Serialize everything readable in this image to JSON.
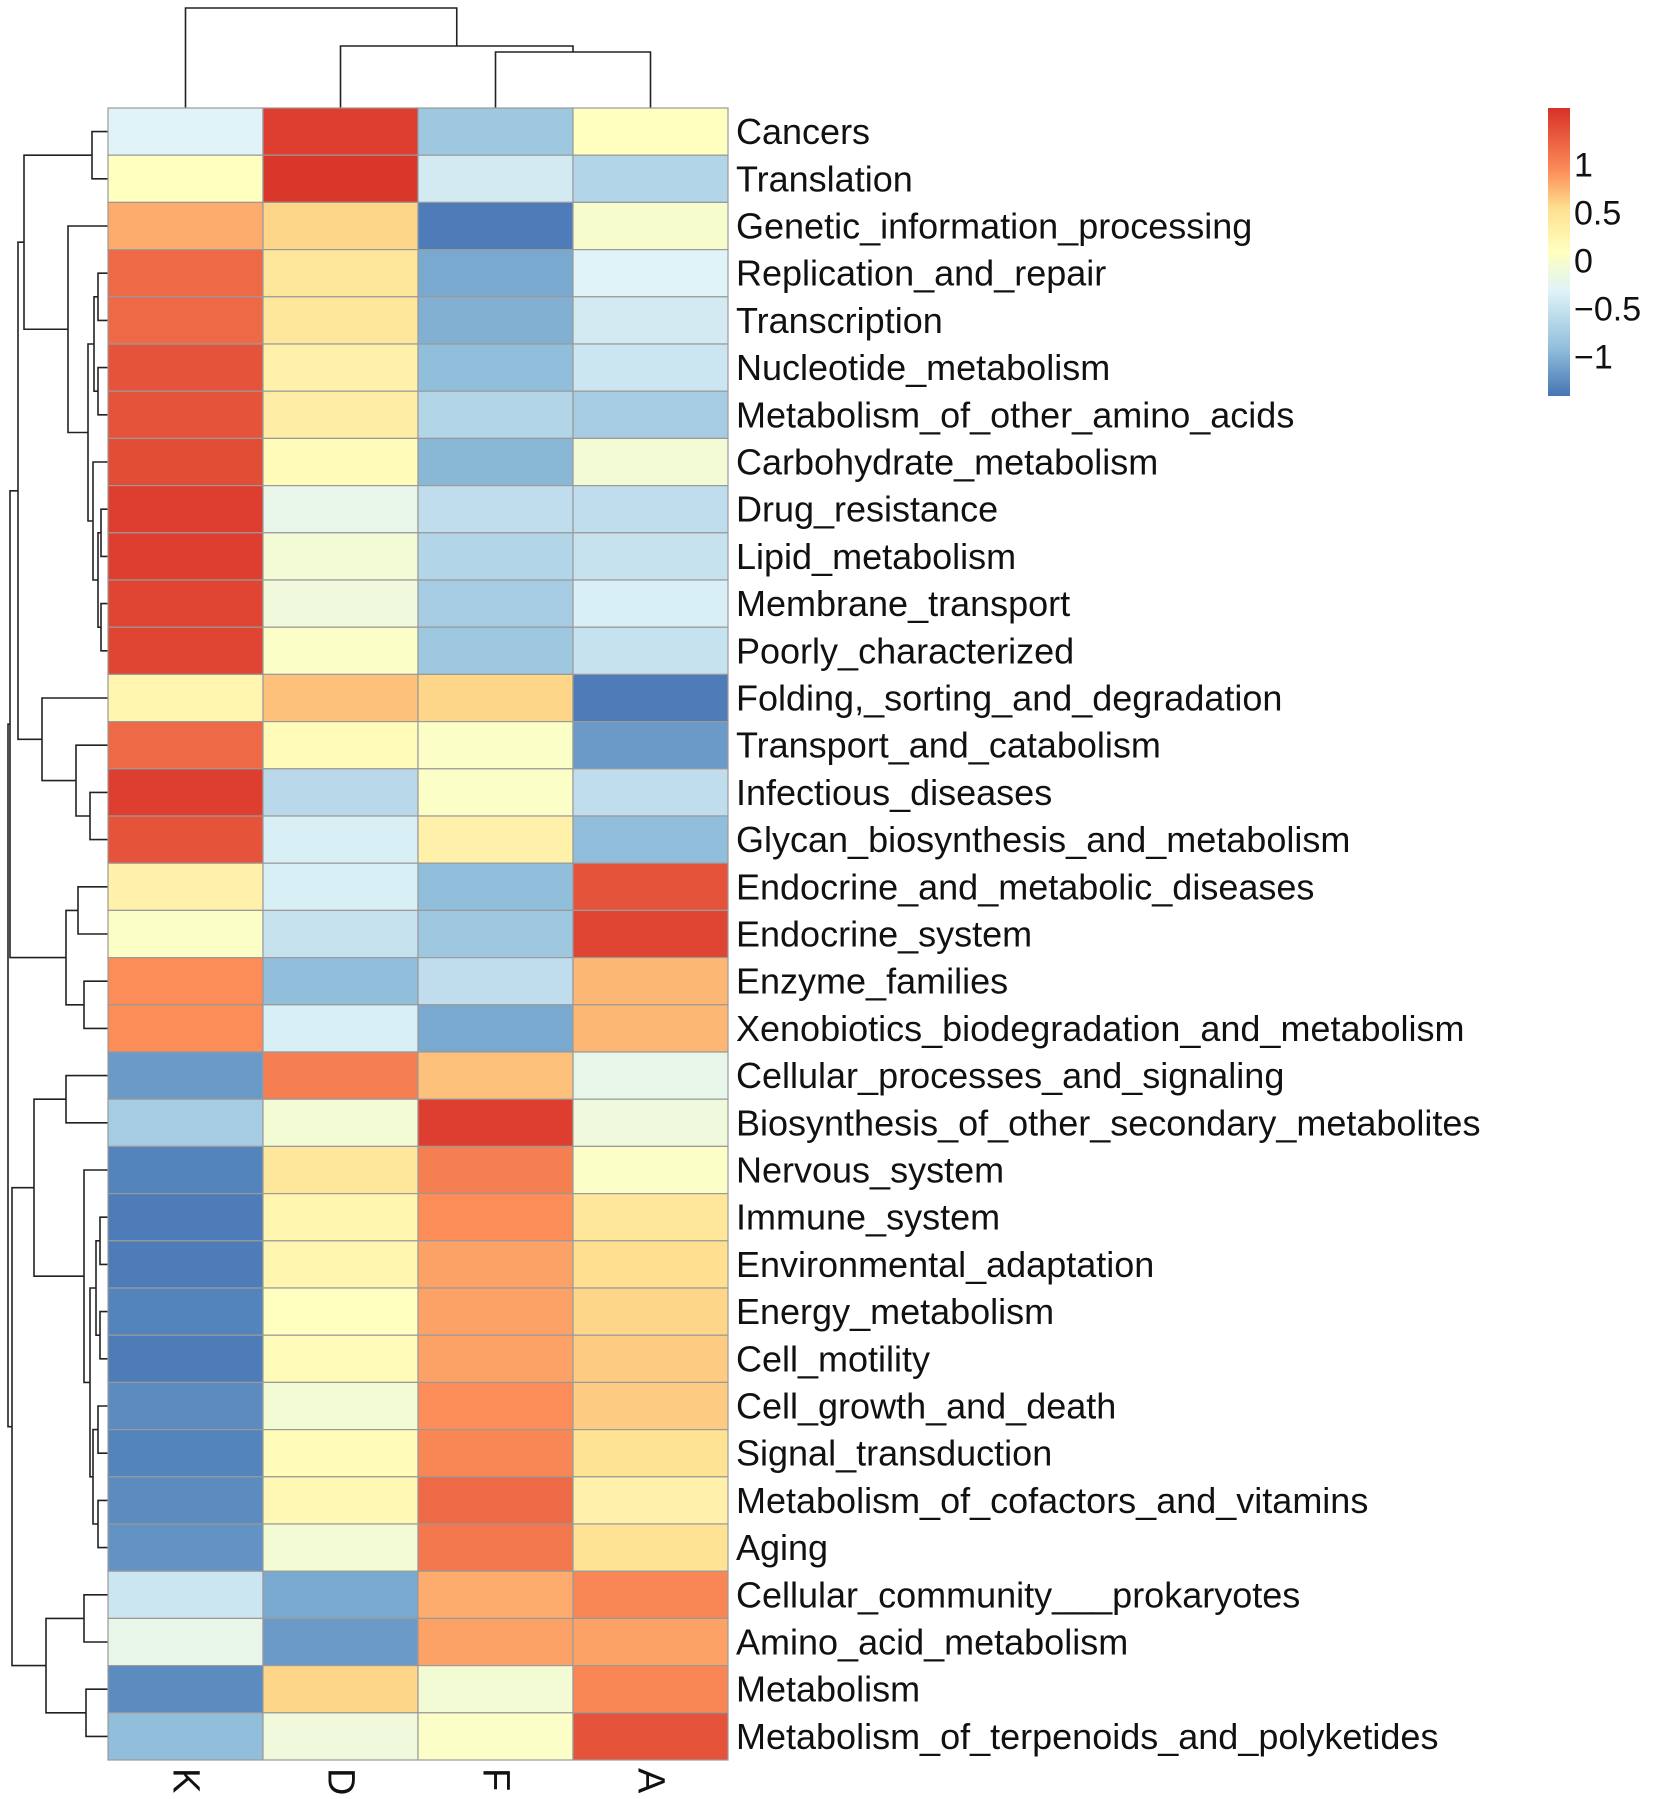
{
  "chart_data": {
    "type": "heatmap",
    "columns": [
      "K",
      "D",
      "F",
      "A"
    ],
    "rows": [
      {
        "label": "Cancers",
        "values": [
          -0.3,
          1.5,
          -0.8,
          0.1
        ]
      },
      {
        "label": "Translation",
        "values": [
          0.1,
          1.55,
          -0.4,
          -0.65
        ]
      },
      {
        "label": "Genetic_information_processing",
        "values": [
          0.8,
          0.6,
          -1.35,
          0.0
        ]
      },
      {
        "label": "Replication_and_repair",
        "values": [
          1.2,
          0.45,
          -1.05,
          -0.3
        ]
      },
      {
        "label": "Transcription",
        "values": [
          1.2,
          0.45,
          -1.0,
          -0.4
        ]
      },
      {
        "label": "Nucleotide_metabolism",
        "values": [
          1.35,
          0.3,
          -0.9,
          -0.45
        ]
      },
      {
        "label": "Metabolism_of_other_amino_acids",
        "values": [
          1.35,
          0.35,
          -0.65,
          -0.75
        ]
      },
      {
        "label": "Carbohydrate_metabolism",
        "values": [
          1.4,
          0.15,
          -0.95,
          -0.05
        ]
      },
      {
        "label": "Drug_resistance",
        "values": [
          1.5,
          -0.2,
          -0.55,
          -0.55
        ]
      },
      {
        "label": "Lipid_metabolism",
        "values": [
          1.5,
          -0.05,
          -0.65,
          -0.5
        ]
      },
      {
        "label": "Membrane_transport",
        "values": [
          1.45,
          -0.1,
          -0.75,
          -0.35
        ]
      },
      {
        "label": "Poorly_characterized",
        "values": [
          1.45,
          0.05,
          -0.8,
          -0.5
        ]
      },
      {
        "label": "Folding,_sorting_and_degradation",
        "values": [
          0.25,
          0.7,
          0.6,
          -1.35
        ]
      },
      {
        "label": "Transport_and_catabolism",
        "values": [
          1.2,
          0.15,
          0.05,
          -1.15
        ]
      },
      {
        "label": "Infectious_diseases",
        "values": [
          1.5,
          -0.6,
          0.05,
          -0.55
        ]
      },
      {
        "label": "Glycan_biosynthesis_and_metabolism",
        "values": [
          1.35,
          -0.35,
          0.3,
          -0.9
        ]
      },
      {
        "label": "Endocrine_and_metabolic_diseases",
        "values": [
          0.3,
          -0.35,
          -0.9,
          1.35
        ]
      },
      {
        "label": "Endocrine_system",
        "values": [
          0.05,
          -0.5,
          -0.8,
          1.45
        ]
      },
      {
        "label": "Enzyme_families",
        "values": [
          0.95,
          -0.9,
          -0.55,
          0.75
        ]
      },
      {
        "label": "Xenobiotics_biodegradation_and_metabolism",
        "values": [
          0.95,
          -0.35,
          -1.05,
          0.75
        ]
      },
      {
        "label": "Cellular_processes_and_signaling",
        "values": [
          -1.15,
          1.05,
          0.7,
          -0.2
        ]
      },
      {
        "label": "Biosynthesis_of_other_secondary_metabolites",
        "values": [
          -0.75,
          -0.05,
          1.5,
          -0.1
        ]
      },
      {
        "label": "Nervous_system",
        "values": [
          -1.3,
          0.45,
          1.05,
          0.05
        ]
      },
      {
        "label": "Immune_system",
        "values": [
          -1.35,
          0.25,
          0.95,
          0.45
        ]
      },
      {
        "label": "Environmental_adaptation",
        "values": [
          -1.35,
          0.25,
          0.85,
          0.55
        ]
      },
      {
        "label": "Energy_metabolism",
        "values": [
          -1.3,
          0.1,
          0.85,
          0.6
        ]
      },
      {
        "label": "Cell_motility",
        "values": [
          -1.35,
          0.15,
          0.85,
          0.65
        ]
      },
      {
        "label": "Cell_growth_and_death",
        "values": [
          -1.25,
          -0.05,
          0.95,
          0.65
        ]
      },
      {
        "label": "Signal_transduction",
        "values": [
          -1.3,
          0.15,
          1.0,
          0.5
        ]
      },
      {
        "label": "Metabolism_of_cofactors_and_vitamins",
        "values": [
          -1.25,
          0.2,
          1.2,
          0.3
        ]
      },
      {
        "label": "Aging",
        "values": [
          -1.2,
          -0.05,
          1.1,
          0.5
        ]
      },
      {
        "label": "Cellular_community___prokaryotes",
        "values": [
          -0.45,
          -1.05,
          0.8,
          1.0
        ]
      },
      {
        "label": "Amino_acid_metabolism",
        "values": [
          -0.2,
          -1.15,
          0.85,
          0.85
        ]
      },
      {
        "label": "Metabolism",
        "values": [
          -1.25,
          0.6,
          -0.05,
          1.0
        ]
      },
      {
        "label": "Metabolism_of_terpenoids_and_polyketides",
        "values": [
          -0.9,
          -0.1,
          0.05,
          1.35
        ]
      }
    ],
    "color_scale": {
      "range": [
        -1.4,
        1.6
      ],
      "ticks": [
        1,
        0.5,
        0,
        -0.5,
        -1
      ],
      "tick_labels": [
        "1",
        "0.5",
        "0",
        "−0.5",
        "−1"
      ],
      "stops": [
        {
          "value": -1.4,
          "color": "#4575b4"
        },
        {
          "value": -0.9,
          "color": "#91bfdb"
        },
        {
          "value": -0.3,
          "color": "#e0f3f8"
        },
        {
          "value": 0.1,
          "color": "#ffffbf"
        },
        {
          "value": 0.55,
          "color": "#fee090"
        },
        {
          "value": 0.95,
          "color": "#fc8d59"
        },
        {
          "value": 1.6,
          "color": "#d73027"
        }
      ]
    },
    "row_clustering": true,
    "column_clustering": true,
    "legend_position": "top-right"
  }
}
